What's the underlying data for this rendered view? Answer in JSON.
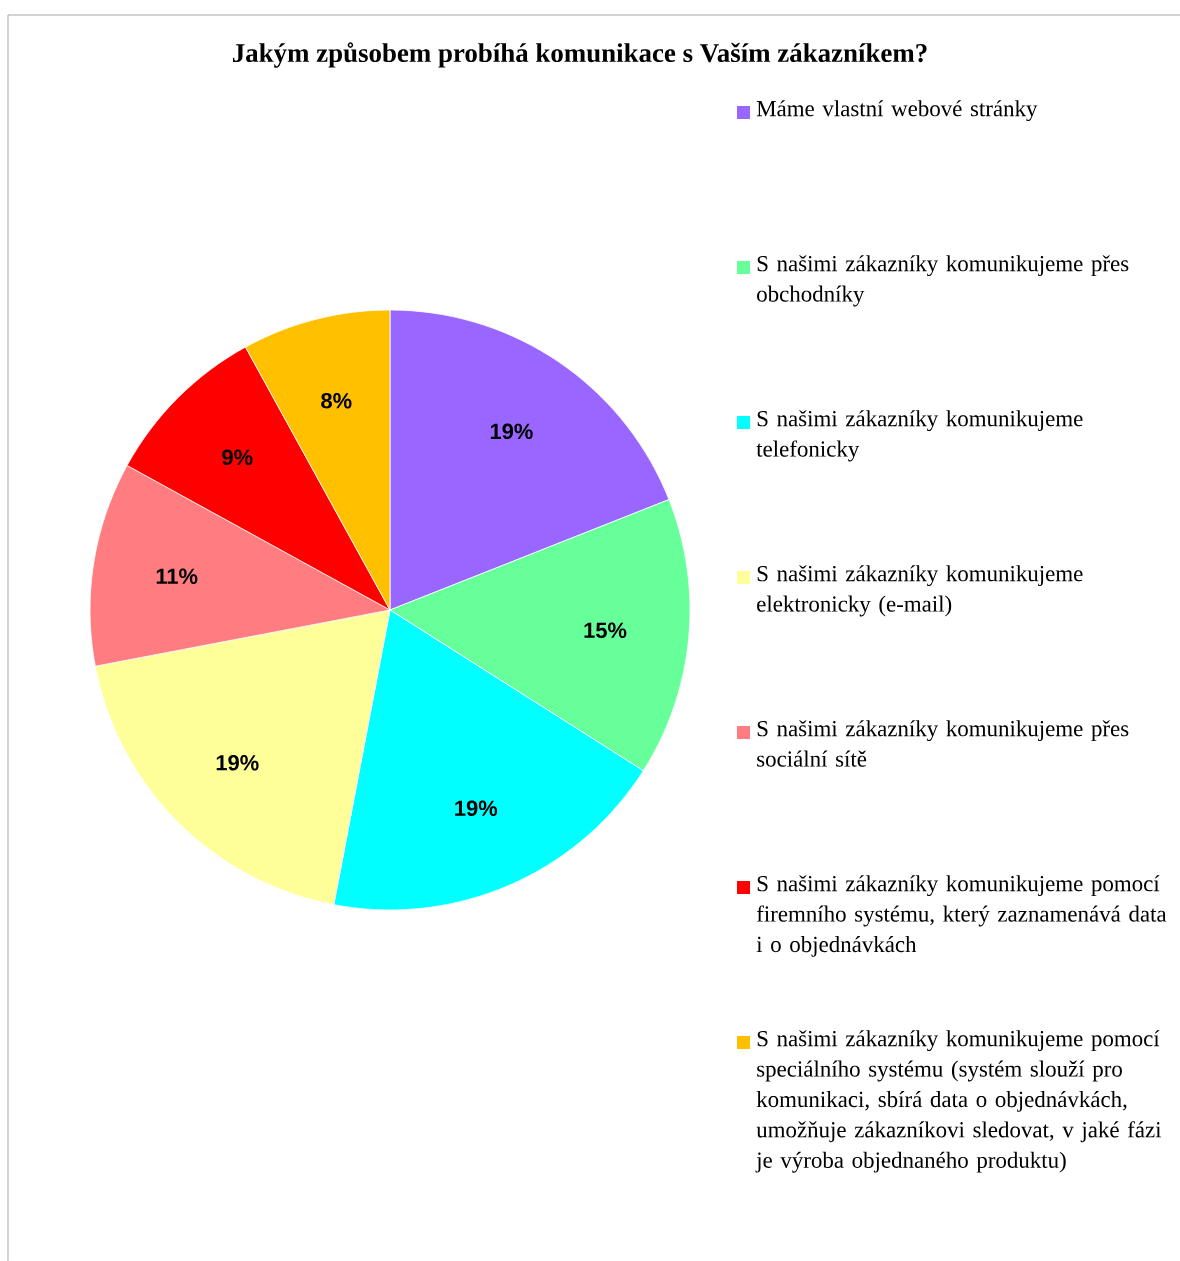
{
  "chart_data": {
    "type": "pie",
    "title": "Jakým způsobem probíhá komunikace s Vaším zákazníkem?",
    "categories": [
      "Máme vlastní webové stránky",
      "S našimi zákazníky komunikujeme přes obchodníky",
      "S našimi zákazníky komunikujeme telefonicky",
      "S našimi zákazníky komunikujeme elektronicky (e-mail)",
      "S našimi zákazníky komunikujeme přes sociální sítě",
      "S našimi zákazníky komunikujeme pomocí firemního systému, který zaznamenává data i o objednávkách",
      "S našimi zákazníky komunikujeme pomocí speciálního systému (systém slouží pro komunikaci, sbírá data o objednávkách, umožňuje zákazníkovi sledovat, v jaké fázi je výroba objednaného produktu)"
    ],
    "values": [
      19,
      15,
      19,
      19,
      11,
      9,
      8
    ],
    "value_labels": [
      "19%",
      "15%",
      "19%",
      "19%",
      "11%",
      "9%",
      "8%"
    ],
    "colors": [
      "#9966ff",
      "#66ff99",
      "#00ffff",
      "#ffff99",
      "#ff7c80",
      "#ff0000",
      "#ffc000"
    ],
    "legend": "right"
  }
}
